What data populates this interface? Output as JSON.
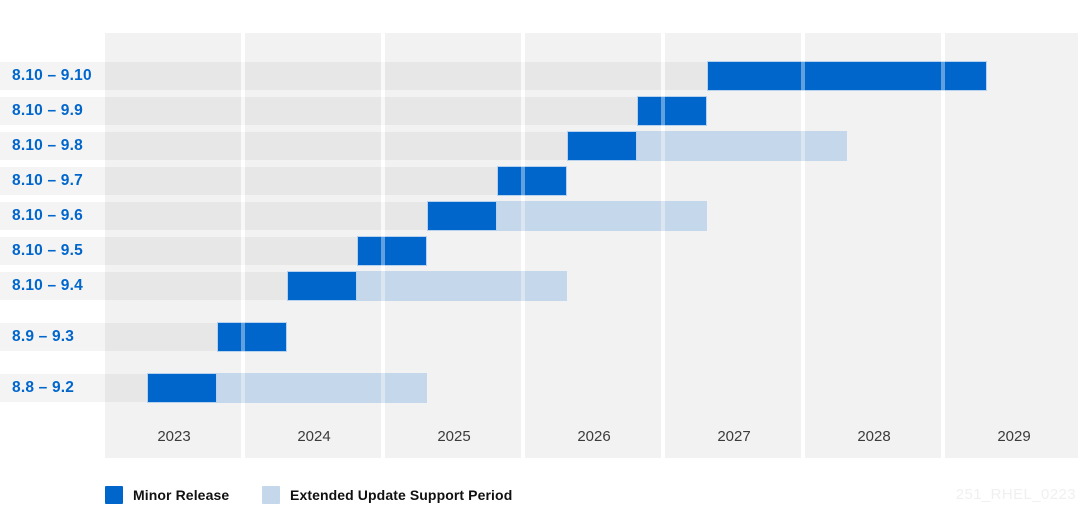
{
  "chart_data": {
    "type": "gantt",
    "title": "",
    "x_axis": {
      "tick_labels": [
        "2023",
        "2024",
        "2025",
        "2026",
        "2027",
        "2028",
        "2029"
      ],
      "range": [
        2023,
        2030
      ],
      "unit": "year"
    },
    "rows": [
      {
        "label": "8.10 – 9.10",
        "group": "8.10",
        "minor_release": {
          "start": 2027.31,
          "end": 2029.31
        },
        "eus": null
      },
      {
        "label": "8.10 – 9.9",
        "group": "8.10",
        "minor_release": {
          "start": 2026.81,
          "end": 2027.31
        },
        "eus": null
      },
      {
        "label": "8.10 – 9.8",
        "group": "8.10",
        "minor_release": {
          "start": 2026.31,
          "end": 2026.81
        },
        "eus": {
          "start": 2026.81,
          "end": 2028.31
        }
      },
      {
        "label": "8.10 – 9.7",
        "group": "8.10",
        "minor_release": {
          "start": 2025.81,
          "end": 2026.31
        },
        "eus": null
      },
      {
        "label": "8.10 – 9.6",
        "group": "8.10",
        "minor_release": {
          "start": 2025.31,
          "end": 2025.81
        },
        "eus": {
          "start": 2025.81,
          "end": 2027.31
        }
      },
      {
        "label": "8.10 – 9.5",
        "group": "8.10",
        "minor_release": {
          "start": 2024.81,
          "end": 2025.31
        },
        "eus": null
      },
      {
        "label": "8.10 – 9.4",
        "group": "8.10",
        "minor_release": {
          "start": 2024.31,
          "end": 2024.81
        },
        "eus": {
          "start": 2024.81,
          "end": 2026.31
        }
      },
      {
        "label": "8.9 – 9.3",
        "group": "8.9",
        "minor_release": {
          "start": 2023.81,
          "end": 2024.31
        },
        "eus": null
      },
      {
        "label": "8.8 – 9.2",
        "group": "8.8",
        "minor_release": {
          "start": 2023.31,
          "end": 2023.81
        },
        "eus": {
          "start": 2023.81,
          "end": 2025.31
        }
      }
    ],
    "legend": [
      {
        "label": "Minor Release",
        "color": "#0066cc"
      },
      {
        "label": "Extended Update Support Period",
        "color": "#c5d7eb"
      }
    ],
    "grid": "year-column-stripes",
    "legend_position": "bottom-left"
  },
  "colors": {
    "minor_release": "#0066cc",
    "eus": "#c5d7eb",
    "row_label": "#0066cc",
    "axis_text": "#3b3b3b",
    "column_stripe": "#f2f2f2"
  },
  "watermark": "251_RHEL_0223"
}
